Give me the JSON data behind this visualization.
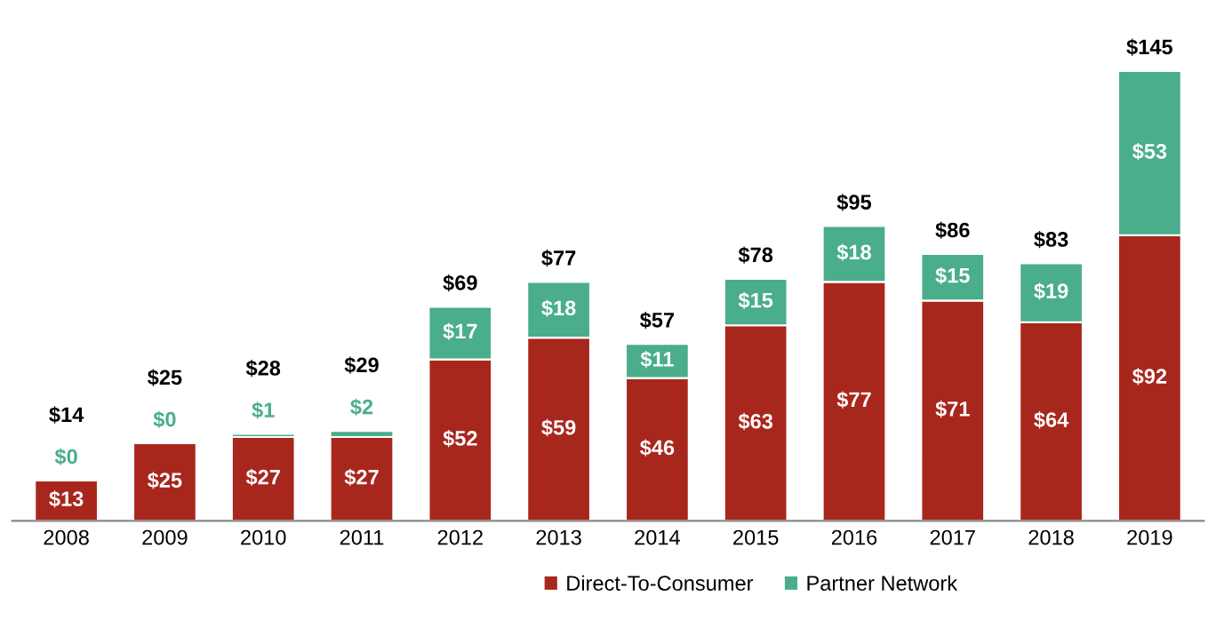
{
  "chart_data": {
    "type": "bar",
    "stacked": true,
    "categories": [
      "2008",
      "2009",
      "2010",
      "2011",
      "2012",
      "2013",
      "2014",
      "2015",
      "2016",
      "2017",
      "2018",
      "2019"
    ],
    "series": [
      {
        "name": "Direct-To-Consumer",
        "color": "#a8271d",
        "values": [
          13,
          25,
          27,
          27,
          52,
          59,
          46,
          63,
          77,
          71,
          64,
          92
        ],
        "value_labels": [
          "$13",
          "$25",
          "$27",
          "$27",
          "$52",
          "$59",
          "$46",
          "$63",
          "$77",
          "$71",
          "$64",
          "$92"
        ]
      },
      {
        "name": "Partner Network",
        "color": "#4aad8c",
        "values": [
          0,
          0,
          1,
          2,
          17,
          18,
          11,
          15,
          18,
          15,
          19,
          53
        ],
        "value_labels": [
          "$0",
          "$0",
          "$1",
          "$2",
          "$17",
          "$18",
          "$11",
          "$15",
          "$18",
          "$15",
          "$19",
          "$53"
        ]
      }
    ],
    "totals": [
      "$14",
      "$25",
      "$28",
      "$29",
      "$69",
      "$77",
      "$57",
      "$78",
      "$95",
      "$86",
      "$83",
      "$145"
    ],
    "legend": "bottom",
    "grid": false
  }
}
